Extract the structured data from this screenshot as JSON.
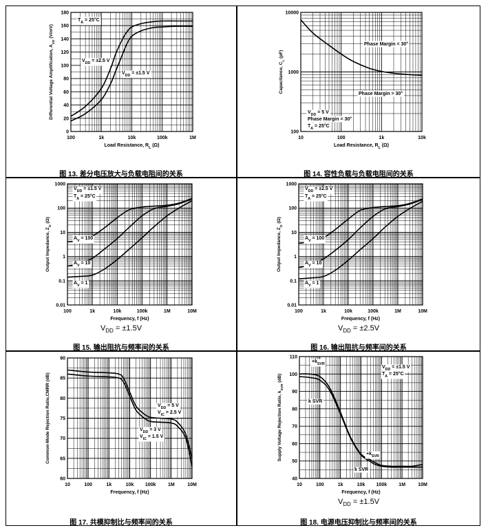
{
  "chart_data": [
    {
      "type": "line",
      "title": "",
      "caption": "图 13. 差分电压放大与负载电阻间的关系",
      "xlabel": "Load Resistance, RL (Ω)",
      "ylabel": "Differential Voltage Amplification, AVD (V/mV)",
      "xscale": "log",
      "xlim": [
        100,
        1000000
      ],
      "yscale": "linear",
      "ylim": [
        0,
        180
      ],
      "xticks": [
        100,
        1000,
        10000,
        100000,
        1000000
      ],
      "xticklabels": [
        "100",
        "1k",
        "10k",
        "100k",
        "1M"
      ],
      "yticks": [
        0,
        20,
        40,
        60,
        80,
        100,
        120,
        140,
        160,
        180
      ],
      "yticklabels": [
        "0",
        "20",
        "40",
        "60",
        "80",
        "100",
        "120",
        "140",
        "160",
        "180"
      ],
      "series": [
        {
          "name": "VDD = ±2.5 V",
          "x": [
            100,
            300,
            1000,
            2000,
            3000,
            5000,
            7000,
            10000,
            20000,
            50000,
            100000,
            300000,
            1000000
          ],
          "y": [
            23,
            38,
            65,
            95,
            118,
            140,
            151,
            158,
            163,
            166,
            167,
            167,
            167
          ]
        },
        {
          "name": "VDD = ±1.5 V",
          "x": [
            100,
            300,
            1000,
            2000,
            3000,
            5000,
            7000,
            10000,
            20000,
            50000,
            100000,
            300000,
            1000000
          ],
          "y": [
            16,
            27,
            48,
            72,
            92,
            117,
            133,
            144,
            152,
            157,
            158,
            159,
            159
          ]
        }
      ],
      "annotations": [
        {
          "text": "TA = 25°C"
        },
        {
          "text": "VDD = ±2.5 V"
        },
        {
          "text": "VDD = ±1.5 V"
        }
      ]
    },
    {
      "type": "line",
      "title": "",
      "caption": "图 14. 容性负载与负载电阻间的关系",
      "xlabel": "Load Resistance, RL (Ω)",
      "ylabel": "Capacitance, CL (pF)",
      "xscale": "log",
      "xlim": [
        10,
        10000
      ],
      "yscale": "log",
      "ylim": [
        100,
        10000
      ],
      "xticks": [
        10,
        100,
        1000,
        10000
      ],
      "xticklabels": [
        "10",
        "100",
        "1k",
        "10k"
      ],
      "yticks": [
        100,
        1000,
        10000
      ],
      "yticklabels": [
        "100",
        "1000",
        "10000"
      ],
      "series": [
        {
          "name": "Phase Margin = 30°",
          "x": [
            10,
            20,
            50,
            100,
            200,
            500,
            1000,
            2000,
            5000,
            10000
          ],
          "y": [
            7500,
            4500,
            2800,
            2000,
            1500,
            1150,
            1020,
            950,
            900,
            880
          ]
        }
      ],
      "annotations": [
        {
          "text": "Phase Margin < 30°"
        },
        {
          "text": "Phase Margin > 30°"
        },
        {
          "text": "VDD = 5 V"
        },
        {
          "text": "Phase Margin = 30°"
        },
        {
          "text": "TA = 25°C"
        }
      ]
    },
    {
      "type": "line",
      "title": "",
      "caption": "图 15. 输出阻抗与频率间的关系",
      "subcaption": "VDD = ±1.5V",
      "xlabel": "Frequency, f (Hz)",
      "ylabel": "Output Impedance, ZO (Ω)",
      "xscale": "log",
      "xlim": [
        100,
        10000000
      ],
      "yscale": "log",
      "ylim": [
        0.01,
        1000
      ],
      "xticks": [
        100,
        1000,
        10000,
        100000,
        1000000,
        10000000
      ],
      "xticklabels": [
        "100",
        "1k",
        "10k",
        "100k",
        "1M",
        "10M"
      ],
      "yticks": [
        0.01,
        0.1,
        1,
        10,
        100,
        1000
      ],
      "yticklabels": [
        "0.01",
        "0.1",
        "1",
        "10",
        "100",
        "1000"
      ],
      "series": [
        {
          "name": "AV = 100",
          "x": [
            100,
            300,
            1000,
            3000,
            10000,
            30000,
            100000,
            300000,
            1000000,
            3000000,
            10000000
          ],
          "y": [
            4,
            4.6,
            7,
            15,
            40,
            85,
            110,
            120,
            130,
            160,
            250
          ]
        },
        {
          "name": "AV = 10",
          "x": [
            100,
            300,
            1000,
            3000,
            10000,
            30000,
            100000,
            300000,
            1000000,
            3000000,
            10000000
          ],
          "y": [
            0.4,
            0.5,
            0.85,
            2,
            5.5,
            16,
            48,
            95,
            118,
            150,
            240
          ]
        },
        {
          "name": "AV = 1",
          "x": [
            100,
            300,
            1000,
            3000,
            10000,
            30000,
            100000,
            300000,
            1000000,
            3000000,
            10000000
          ],
          "y": [
            0.14,
            0.15,
            0.17,
            0.3,
            0.75,
            2,
            6,
            17,
            48,
            100,
            200
          ]
        }
      ],
      "annotations": [
        {
          "text": "VDD = ±1.5 V"
        },
        {
          "text": "TA = 25°C"
        },
        {
          "text": "AV = 100"
        },
        {
          "text": "AV = 10"
        },
        {
          "text": "AV = 1"
        }
      ]
    },
    {
      "type": "line",
      "title": "",
      "caption": "图 16. 输出阻抗与频率间的关系",
      "subcaption": "VDD = ±2.5V",
      "xlabel": "Frequency, f (Hz)",
      "ylabel": "Output Impedance, ZO (Ω)",
      "xscale": "log",
      "xlim": [
        100,
        10000000
      ],
      "yscale": "log",
      "ylim": [
        0.01,
        1000
      ],
      "xticks": [
        100,
        1000,
        10000,
        100000,
        1000000,
        10000000
      ],
      "xticklabels": [
        "100",
        "1k",
        "10k",
        "100k",
        "1M",
        "10M"
      ],
      "yticks": [
        0.01,
        0.1,
        1,
        10,
        100,
        1000
      ],
      "yticklabels": [
        "0.01",
        "0.1",
        "1",
        "10",
        "100",
        "1000"
      ],
      "series": [
        {
          "name": "AV = 100",
          "x": [
            100,
            300,
            1000,
            3000,
            10000,
            30000,
            100000,
            300000,
            1000000,
            3000000,
            10000000
          ],
          "y": [
            3.5,
            4,
            6,
            13,
            35,
            80,
            105,
            115,
            125,
            155,
            240
          ]
        },
        {
          "name": "AV = 10",
          "x": [
            100,
            300,
            1000,
            3000,
            10000,
            30000,
            100000,
            300000,
            1000000,
            3000000,
            10000000
          ],
          "y": [
            0.35,
            0.45,
            0.8,
            1.8,
            5,
            15,
            45,
            92,
            115,
            145,
            230
          ]
        },
        {
          "name": "AV = 1",
          "x": [
            100,
            300,
            1000,
            3000,
            10000,
            30000,
            100000,
            300000,
            1000000,
            3000000,
            10000000
          ],
          "y": [
            0.12,
            0.13,
            0.15,
            0.27,
            0.7,
            1.9,
            5.5,
            16,
            45,
            95,
            190
          ]
        }
      ],
      "annotations": [
        {
          "text": "VDD = ±2.5 V"
        },
        {
          "text": "TA = 25°C"
        },
        {
          "text": "AV = 100"
        },
        {
          "text": "AV = 10"
        },
        {
          "text": "AV = 1"
        }
      ]
    },
    {
      "type": "line",
      "title": "",
      "caption": "图 17. 共模抑制比与频率间的关系",
      "xlabel": "Frequency, f (Hz)",
      "ylabel": "Common-Mode Rejection Ratio,CMRR (dB)",
      "xscale": "log",
      "xlim": [
        10,
        10000000
      ],
      "yscale": "linear",
      "ylim": [
        60,
        90
      ],
      "xticks": [
        10,
        100,
        1000,
        10000,
        100000,
        1000000,
        10000000
      ],
      "xticklabels": [
        "10",
        "100",
        "1k",
        "10k",
        "100k",
        "1M",
        "10M"
      ],
      "yticks": [
        60,
        65,
        70,
        75,
        80,
        85,
        90
      ],
      "yticklabels": [
        "60",
        "65",
        "70",
        "75",
        "80",
        "85",
        "90"
      ],
      "series": [
        {
          "name": "VDD = 5 V, VIC = 2.5 V",
          "x": [
            10,
            100,
            1000,
            3000,
            5000,
            10000,
            20000,
            50000,
            100000,
            300000,
            1000000,
            2000000,
            5000000,
            10000000
          ],
          "y": [
            87,
            86.5,
            86.3,
            86,
            85,
            81.5,
            78,
            76,
            75.2,
            75,
            74.8,
            74,
            71,
            65
          ]
        },
        {
          "name": "VDD = 3 V, VIC = 1.5 V",
          "x": [
            10,
            100,
            1000,
            3000,
            5000,
            10000,
            20000,
            50000,
            100000,
            300000,
            1000000,
            2000000,
            5000000,
            10000000
          ],
          "y": [
            86,
            85.5,
            85.3,
            85,
            84,
            80.5,
            77,
            75,
            74.2,
            74,
            73.8,
            73,
            70,
            63
          ]
        }
      ],
      "annotations": [
        {
          "text": "VDD = 5 V"
        },
        {
          "text": "VIC = 2.5 V"
        },
        {
          "text": "VDD = 3 V"
        },
        {
          "text": "VIC = 1.5 V"
        }
      ]
    },
    {
      "type": "line",
      "title": "",
      "caption": "图 18. 电源电压抑制比与频率间的关系",
      "subcaption": "VDD = ±1.5V",
      "xlabel": "Frequency, f (Hz)",
      "ylabel": "Supply Voltage Rejection Ratio, kSVR (dB)",
      "xscale": "log",
      "xlim": [
        10,
        10000000
      ],
      "yscale": "linear",
      "ylim": [
        40,
        110
      ],
      "xticks": [
        10,
        100,
        1000,
        10000,
        100000,
        1000000,
        10000000
      ],
      "xticklabels": [
        "10",
        "100",
        "1k",
        "10k",
        "100k",
        "1M",
        "10M"
      ],
      "yticks": [
        40,
        50,
        60,
        70,
        80,
        90,
        100,
        110
      ],
      "yticklabels": [
        "40",
        "50",
        "60",
        "70",
        "80",
        "90",
        "100",
        "110"
      ],
      "series": [
        {
          "name": "+kSVR",
          "x": [
            10,
            30,
            100,
            300,
            1000,
            3000,
            10000,
            30000,
            50000,
            100000,
            300000,
            1000000,
            3000000,
            10000000
          ],
          "y": [
            100,
            100,
            98.5,
            92,
            78,
            64,
            54,
            50.5,
            49,
            47.5,
            47,
            47,
            47,
            48
          ]
        },
        {
          "name": "−kSVR",
          "x": [
            10,
            30,
            100,
            300,
            1000,
            3000,
            10000,
            30000,
            50000,
            100000,
            300000,
            1000000,
            3000000,
            10000000
          ],
          "y": [
            98.5,
            98,
            96.5,
            90.5,
            77,
            63.5,
            53.5,
            49.5,
            48,
            47,
            46.5,
            46.5,
            46.5,
            46.5
          ]
        }
      ],
      "annotations": [
        {
          "text": "+kSVR"
        },
        {
          "text": "k SVR"
        },
        {
          "text": "+kSVR"
        },
        {
          "text": "k SVR"
        },
        {
          "text": "VDD = ±1.5 V"
        },
        {
          "text": "TA = 25°C"
        }
      ]
    }
  ]
}
